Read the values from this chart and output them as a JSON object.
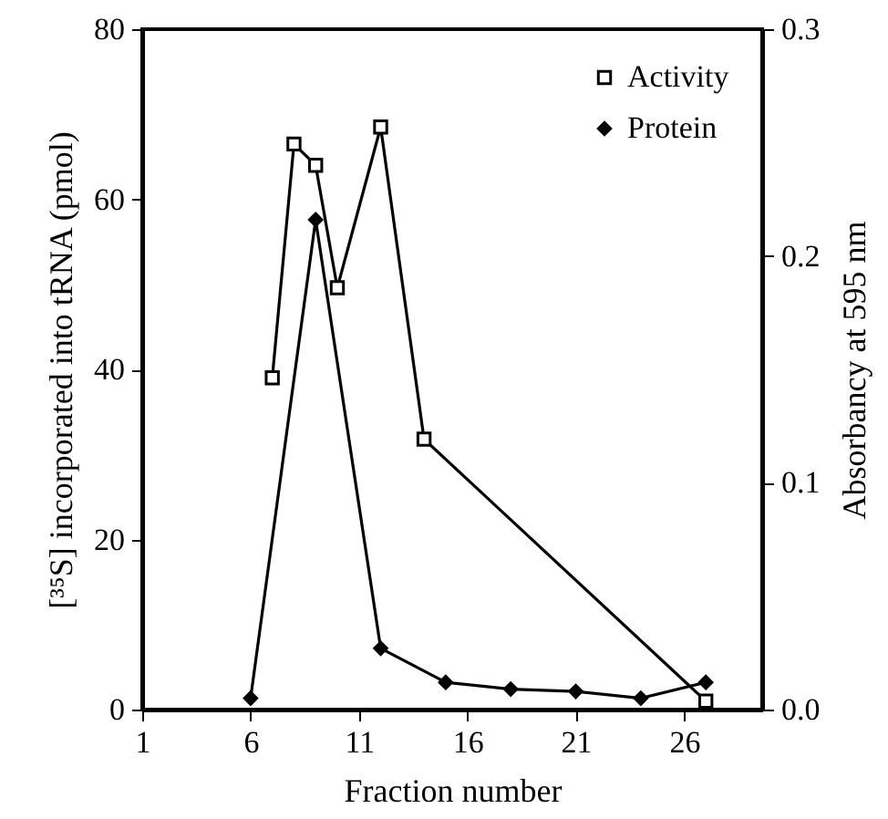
{
  "chart_data": {
    "type": "line",
    "xlabel": "Fraction number",
    "ylabel": "[³⁵S] incorporated into tRNA (pmol)",
    "y2label": "Absorbancy at 595 nm",
    "xlim": [
      1,
      29.6
    ],
    "xticks": [
      1,
      6,
      11,
      16,
      21,
      26
    ],
    "ylim": [
      0,
      80
    ],
    "yticks": [
      0,
      20,
      40,
      60,
      80
    ],
    "y2lim": [
      0,
      0.3
    ],
    "y2ticks": [
      {
        "value": 0,
        "label": "0.0"
      },
      0.1,
      0.2,
      0.3
    ],
    "legend": "top right",
    "grid": false,
    "series": [
      {
        "name": "Activity",
        "color": "#000000",
        "marker": "square",
        "x": [
          7,
          8,
          9,
          10,
          12,
          14,
          27
        ],
        "values": [
          39,
          66.5,
          64,
          49.6,
          68.5,
          31.8,
          1
        ]
      },
      {
        "name": "Protein",
        "color": "#000000",
        "marker": "diamond",
        "axis": "y2",
        "x": [
          6,
          9,
          12,
          15,
          18,
          21,
          24,
          27
        ],
        "values": [
          0.005,
          0.216,
          0.027,
          0.012,
          0.009,
          0.008,
          0.005,
          0.012
        ]
      }
    ]
  }
}
